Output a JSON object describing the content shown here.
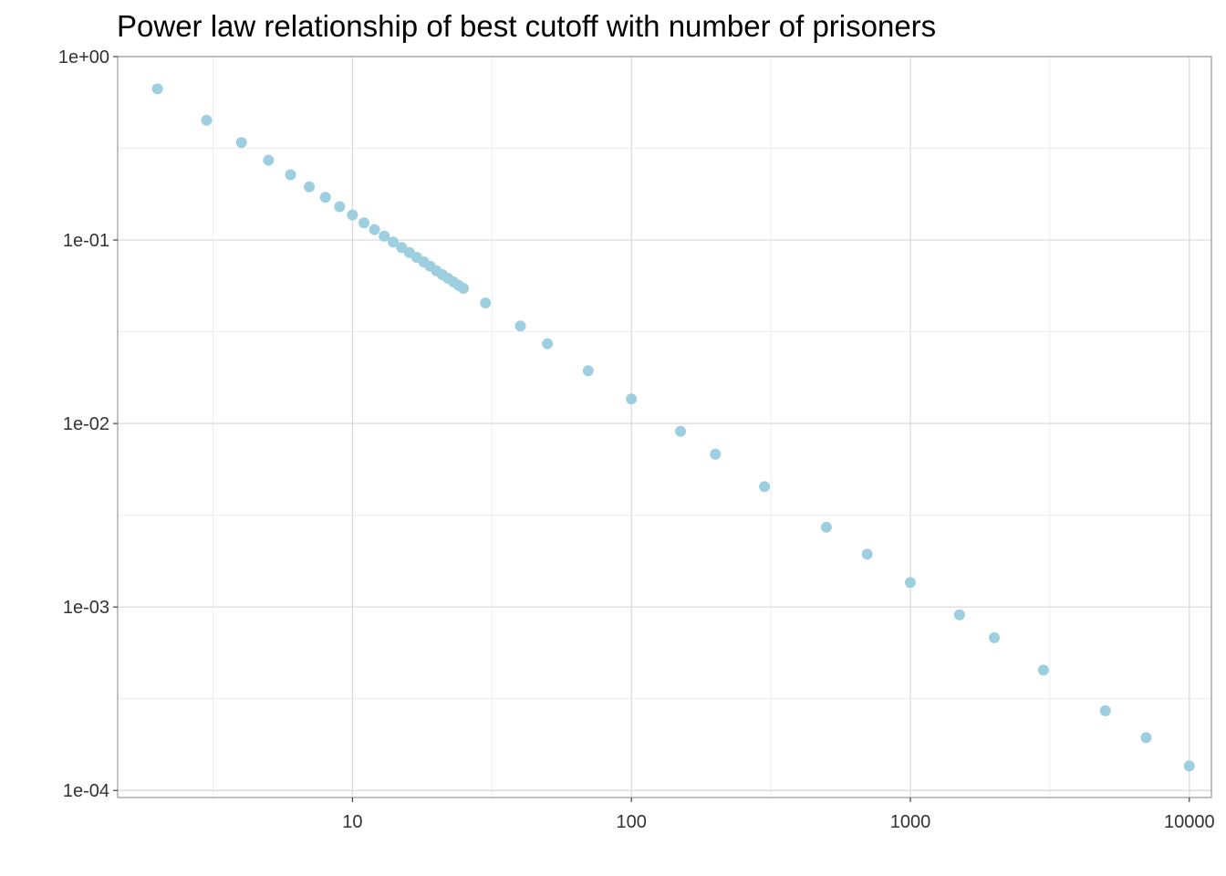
{
  "chart_data": {
    "type": "scatter",
    "title": "Power law relationship of best cutoff with number of prisoners",
    "xlabel": "",
    "ylabel": "",
    "x_scale": "log10",
    "y_scale": "log10",
    "xlim": [
      1.44,
      12000
    ],
    "ylim": [
      9.15e-05,
      1.0
    ],
    "x_ticks": [
      10,
      100,
      1000,
      10000
    ],
    "x_tick_labels": [
      "10",
      "100",
      "1000",
      "10000"
    ],
    "y_ticks": [
      0.0001,
      0.001,
      0.01,
      0.1,
      1
    ],
    "y_tick_labels": [
      "1e-04",
      "1e-03",
      "1e-02",
      "1e-01",
      "1e+00"
    ],
    "grid": true,
    "legend": "none",
    "point_color": "#9ECFE0",
    "series": [
      {
        "description": "best cutoff fraction for N prisoners, N = 2 to 10000 (values follow approximately 1.36/N)",
        "x": [
          2,
          3,
          4,
          5,
          6,
          7,
          8,
          9,
          10,
          11,
          12,
          13,
          14,
          15,
          16,
          17,
          18,
          19,
          20,
          21,
          22,
          23,
          24,
          25,
          30,
          40,
          50,
          70,
          100,
          150,
          200,
          300,
          500,
          700,
          1000,
          1500,
          2000,
          3000,
          5000,
          7000,
          10000
        ],
        "y": [
          0.667,
          0.45,
          0.34,
          0.272,
          0.227,
          0.195,
          0.171,
          0.152,
          0.137,
          0.124,
          0.114,
          0.105,
          0.0975,
          0.091,
          0.0855,
          0.0805,
          0.076,
          0.072,
          0.068,
          0.0648,
          0.0619,
          0.0592,
          0.0567,
          0.0545,
          0.0454,
          0.034,
          0.0272,
          0.0194,
          0.0136,
          0.00907,
          0.0068,
          0.00453,
          0.00272,
          0.00194,
          0.00136,
          0.000907,
          0.00068,
          0.000453,
          0.000272,
          0.000194,
          0.000136
        ]
      }
    ]
  }
}
